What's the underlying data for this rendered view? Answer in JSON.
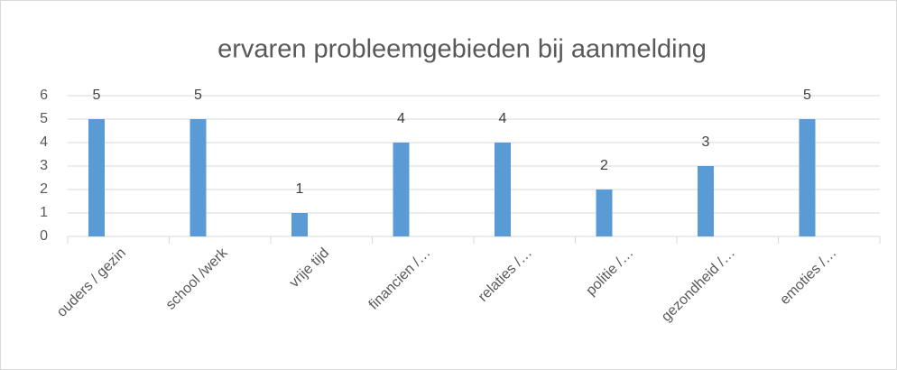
{
  "chart_data": {
    "type": "bar",
    "title": "ervaren probleemgebieden bij aanmelding",
    "categories": [
      "ouders / gezin",
      "school /werk",
      "vrije tijd",
      "financien /…",
      "relaties /…",
      "politie /…",
      "gezondheid /…",
      "emoties /…"
    ],
    "values": [
      5,
      5,
      1,
      4,
      4,
      2,
      3,
      5
    ],
    "color": "#5b9bd5",
    "ylim": [
      0,
      6
    ],
    "yticks": [
      0,
      1,
      2,
      3,
      4,
      5,
      6
    ],
    "grid": true,
    "data_labels": true
  }
}
